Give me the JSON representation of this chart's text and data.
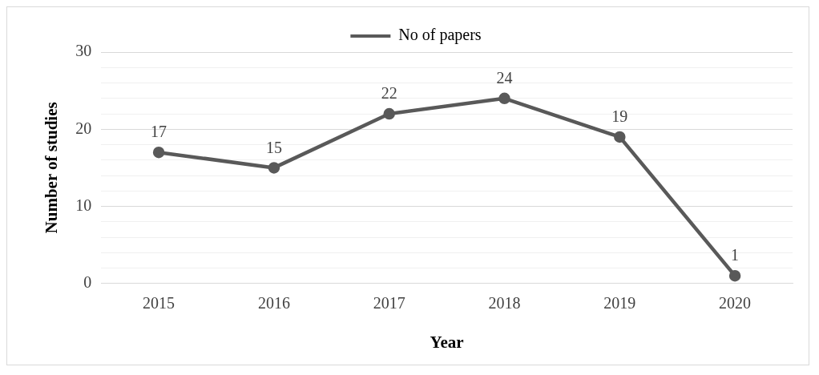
{
  "chart_data": {
    "type": "line",
    "xlabel": "Year",
    "ylabel": "Number of studies",
    "categories": [
      "2015",
      "2016",
      "2017",
      "2018",
      "2019",
      "2020"
    ],
    "series": [
      {
        "name": "No of papers",
        "color": "#595959",
        "values": [
          17,
          15,
          22,
          24,
          19,
          1
        ]
      }
    ],
    "ylim": [
      0,
      30
    ],
    "yticks": [
      0,
      {
        "value": 2,
        "label": null
      },
      {
        "value": 4,
        "label": null
      },
      {
        "value": 6,
        "label": null
      },
      {
        "value": 8,
        "label": null
      },
      10,
      {
        "value": 12,
        "label": null
      },
      {
        "value": 14,
        "label": null
      },
      {
        "value": 16,
        "label": null
      },
      {
        "value": 18,
        "label": null
      },
      20,
      {
        "value": 22,
        "label": null
      },
      {
        "value": 24,
        "label": null
      },
      {
        "value": 26,
        "label": null
      },
      {
        "value": 28,
        "label": null
      },
      30
    ],
    "grid": "y",
    "legend": "top",
    "marker": "circle",
    "line_style": "solid",
    "data_labels": true
  }
}
